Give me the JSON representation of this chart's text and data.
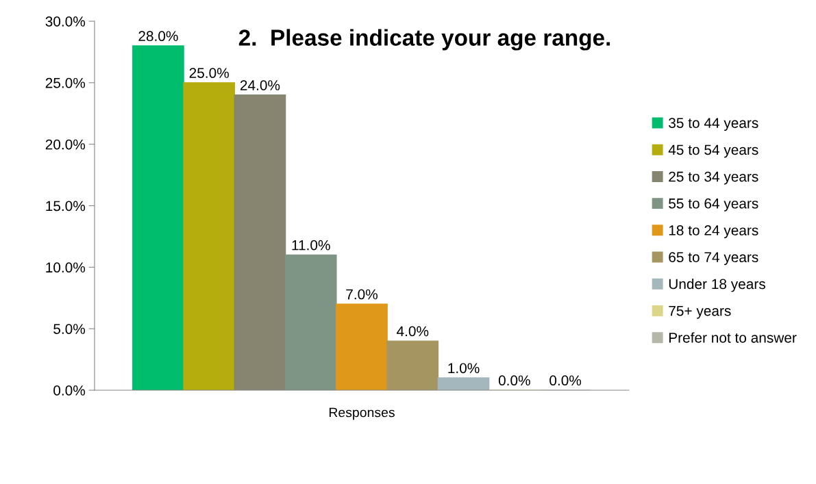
{
  "chart_data": {
    "type": "bar",
    "title": "2.  Please indicate your age range.",
    "xlabel": null,
    "categories": [
      "Responses"
    ],
    "series": [
      {
        "name": "35 to 44 years",
        "color": "#00bd6e",
        "values": [
          28
        ],
        "value_labels": [
          "28.0%"
        ]
      },
      {
        "name": "45 to 54 years",
        "color": "#b5ad0e",
        "values": [
          25
        ],
        "value_labels": [
          "25.0%"
        ]
      },
      {
        "name": "25 to 34 years",
        "color": "#878570",
        "values": [
          24
        ],
        "value_labels": [
          "24.0%"
        ]
      },
      {
        "name": "55 to 64 years",
        "color": "#7e9585",
        "values": [
          11
        ],
        "value_labels": [
          "11.0%"
        ]
      },
      {
        "name": "18 to 24 years",
        "color": "#e0981a",
        "values": [
          7
        ],
        "value_labels": [
          "7.0%"
        ]
      },
      {
        "name": "65 to 74 years",
        "color": "#a59661",
        "values": [
          4
        ],
        "value_labels": [
          "4.0%"
        ]
      },
      {
        "name": "Under 18 years",
        "color": "#a3b7bd",
        "values": [
          1
        ],
        "value_labels": [
          "1.0%"
        ]
      },
      {
        "name": "75+ years",
        "color": "#dcd68a",
        "values": [
          0
        ],
        "value_labels": [
          "0.0%"
        ]
      },
      {
        "name": "Prefer not to answer",
        "color": "#b6b7a8",
        "values": [
          0
        ],
        "value_labels": [
          "0.0%"
        ]
      }
    ],
    "ylim": [
      0,
      30
    ],
    "yticks": [
      {
        "value": 0,
        "label": "0.0%"
      },
      {
        "value": 5,
        "label": "5.0%"
      },
      {
        "value": 10,
        "label": "10.0%"
      },
      {
        "value": 15,
        "label": "15.0%"
      },
      {
        "value": 20,
        "label": "20.0%"
      },
      {
        "value": 25,
        "label": "25.0%"
      },
      {
        "value": 30,
        "label": "30.0%"
      }
    ],
    "grid": false,
    "legend": "right"
  }
}
